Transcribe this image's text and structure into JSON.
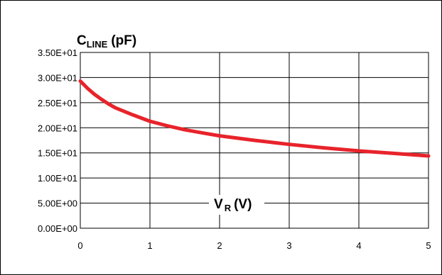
{
  "chart_data": {
    "type": "line",
    "title": "",
    "ylabel": {
      "main": "C",
      "sub": "LINE",
      "unit": "(pF)"
    },
    "xlabel": {
      "main": "V",
      "sub": "R",
      "unit": "(V)"
    },
    "xlim": [
      0,
      5
    ],
    "ylim": [
      0,
      35
    ],
    "x_ticks": [
      "0",
      "1",
      "2",
      "3",
      "4",
      "5"
    ],
    "y_ticks": [
      "0.00E+00",
      "5.00E+00",
      "1.00E+01",
      "1.50E+01",
      "2.00E+01",
      "2.50E+01",
      "3.00E+01",
      "3.50E+01"
    ],
    "grid": true,
    "series": [
      {
        "color": "#e8232b",
        "x": [
          0,
          0.1,
          0.2,
          0.3,
          0.4,
          0.5,
          0.75,
          1.0,
          1.25,
          1.5,
          1.75,
          2.0,
          2.5,
          3.0,
          3.5,
          4.0,
          4.5,
          5.0
        ],
        "y": [
          29.3,
          27.9,
          26.7,
          25.7,
          24.8,
          24.0,
          22.6,
          21.3,
          20.4,
          19.6,
          19.0,
          18.4,
          17.5,
          16.7,
          16.0,
          15.4,
          14.9,
          14.4
        ]
      }
    ]
  }
}
